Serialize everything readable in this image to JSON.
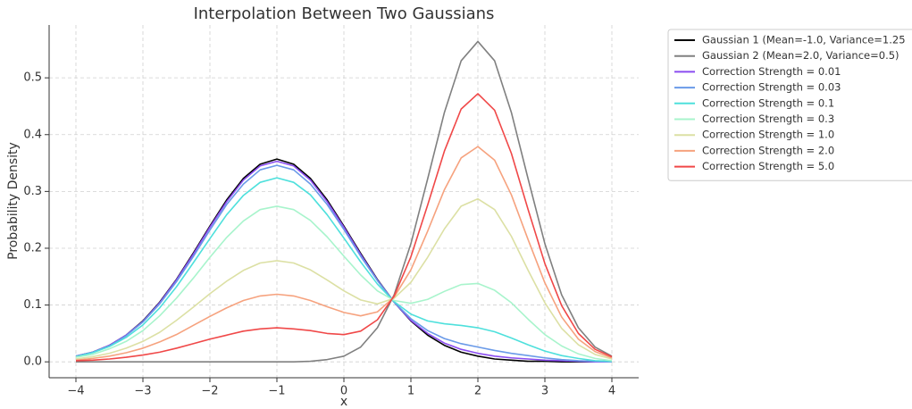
{
  "chart_data": {
    "type": "line",
    "title": "Interpolation Between Two Gaussians",
    "xlabel": "x",
    "ylabel": "Probability Density",
    "x": [
      -4,
      -3.75,
      -3.5,
      -3.25,
      -3,
      -2.75,
      -2.5,
      -2.25,
      -2,
      -1.75,
      -1.5,
      -1.25,
      -1,
      -0.75,
      -0.5,
      -0.25,
      0,
      0.25,
      0.5,
      0.75,
      1,
      1.25,
      1.5,
      1.75,
      2,
      2.25,
      2.5,
      2.75,
      3,
      3.25,
      3.5,
      3.75,
      4
    ],
    "series": [
      {
        "name": "Gaussian 1 (Mean=-1.0, Variance=1.25",
        "color": "#000000",
        "values": [
          0.01,
          0.017,
          0.029,
          0.047,
          0.072,
          0.105,
          0.145,
          0.191,
          0.239,
          0.285,
          0.323,
          0.348,
          0.357,
          0.348,
          0.323,
          0.285,
          0.239,
          0.191,
          0.145,
          0.105,
          0.072,
          0.047,
          0.029,
          0.017,
          0.01,
          0.005,
          0.003,
          0.001,
          0.001,
          0,
          0,
          0,
          0
        ]
      },
      {
        "name": "Gaussian 2 (Mean=2.0, Variance=0.5)",
        "color": "#808080",
        "values": [
          0,
          0,
          0,
          0,
          0,
          0,
          0,
          0,
          0,
          0,
          0,
          0,
          0,
          0,
          0.001,
          0.004,
          0.01,
          0.026,
          0.06,
          0.118,
          0.208,
          0.322,
          0.439,
          0.53,
          0.564,
          0.53,
          0.439,
          0.322,
          0.208,
          0.118,
          0.06,
          0.026,
          0.01
        ]
      },
      {
        "name": "Correction Strength = 0.01",
        "color": "#8a4cf0",
        "values": [
          0.01,
          0.017,
          0.029,
          0.047,
          0.071,
          0.104,
          0.144,
          0.189,
          0.237,
          0.282,
          0.32,
          0.345,
          0.353,
          0.345,
          0.32,
          0.282,
          0.237,
          0.189,
          0.144,
          0.105,
          0.073,
          0.05,
          0.033,
          0.022,
          0.015,
          0.01,
          0.007,
          0.005,
          0.003,
          0.002,
          0.001,
          0,
          0
        ]
      },
      {
        "name": "Correction Strength = 0.03",
        "color": "#6a9ae8",
        "values": [
          0.01,
          0.017,
          0.028,
          0.046,
          0.07,
          0.102,
          0.141,
          0.185,
          0.232,
          0.277,
          0.313,
          0.338,
          0.346,
          0.338,
          0.313,
          0.277,
          0.233,
          0.186,
          0.143,
          0.105,
          0.076,
          0.055,
          0.041,
          0.032,
          0.026,
          0.02,
          0.015,
          0.011,
          0.007,
          0.004,
          0.002,
          0.001,
          0
        ]
      },
      {
        "name": "Correction Strength = 0.1",
        "color": "#4ee0dc",
        "values": [
          0.009,
          0.016,
          0.027,
          0.043,
          0.065,
          0.095,
          0.132,
          0.174,
          0.217,
          0.259,
          0.293,
          0.316,
          0.324,
          0.316,
          0.294,
          0.259,
          0.218,
          0.176,
          0.137,
          0.106,
          0.084,
          0.072,
          0.067,
          0.064,
          0.06,
          0.053,
          0.042,
          0.03,
          0.019,
          0.011,
          0.006,
          0.002,
          0.001
        ]
      },
      {
        "name": "Correction Strength = 0.3",
        "color": "#a8f4cc",
        "values": [
          0.008,
          0.013,
          0.023,
          0.036,
          0.055,
          0.081,
          0.112,
          0.147,
          0.184,
          0.219,
          0.248,
          0.268,
          0.274,
          0.268,
          0.249,
          0.22,
          0.186,
          0.153,
          0.125,
          0.108,
          0.103,
          0.11,
          0.124,
          0.136,
          0.138,
          0.126,
          0.104,
          0.075,
          0.048,
          0.028,
          0.014,
          0.006,
          0.002
        ]
      },
      {
        "name": "Correction Strength = 1.0",
        "color": "#dce0a4",
        "values": [
          0.005,
          0.009,
          0.015,
          0.024,
          0.036,
          0.052,
          0.073,
          0.096,
          0.12,
          0.142,
          0.161,
          0.174,
          0.178,
          0.174,
          0.162,
          0.144,
          0.125,
          0.109,
          0.102,
          0.112,
          0.14,
          0.184,
          0.234,
          0.274,
          0.287,
          0.268,
          0.221,
          0.161,
          0.104,
          0.059,
          0.03,
          0.013,
          0.005
        ]
      },
      {
        "name": "Correction Strength = 2.0",
        "color": "#f6a27e",
        "values": [
          0.003,
          0.006,
          0.01,
          0.016,
          0.024,
          0.035,
          0.048,
          0.064,
          0.08,
          0.095,
          0.108,
          0.116,
          0.119,
          0.116,
          0.108,
          0.097,
          0.087,
          0.081,
          0.088,
          0.114,
          0.162,
          0.23,
          0.303,
          0.359,
          0.379,
          0.355,
          0.294,
          0.215,
          0.139,
          0.079,
          0.04,
          0.018,
          0.007
        ]
      },
      {
        "name": "Correction Strength = 5.0",
        "color": "#f04848",
        "values": [
          0.002,
          0.003,
          0.005,
          0.008,
          0.012,
          0.017,
          0.024,
          0.032,
          0.04,
          0.047,
          0.054,
          0.058,
          0.06,
          0.058,
          0.055,
          0.05,
          0.048,
          0.054,
          0.074,
          0.116,
          0.185,
          0.276,
          0.371,
          0.445,
          0.472,
          0.443,
          0.367,
          0.268,
          0.173,
          0.099,
          0.05,
          0.022,
          0.009
        ]
      }
    ],
    "xlim": [
      -4.4,
      4.4
    ],
    "ylim": [
      -0.028,
      0.593
    ],
    "xticks": [
      {
        "value": -4,
        "label": "−4"
      },
      {
        "value": -3,
        "label": "−3"
      },
      {
        "value": -2,
        "label": "−2"
      },
      {
        "value": -1,
        "label": "−1"
      },
      0,
      1,
      2,
      3,
      4
    ],
    "yticks": [
      {
        "value": 0,
        "label": "0.0"
      },
      0.1,
      0.2,
      0.3,
      0.4,
      0.5
    ],
    "grid": true,
    "legend": "outside right"
  }
}
